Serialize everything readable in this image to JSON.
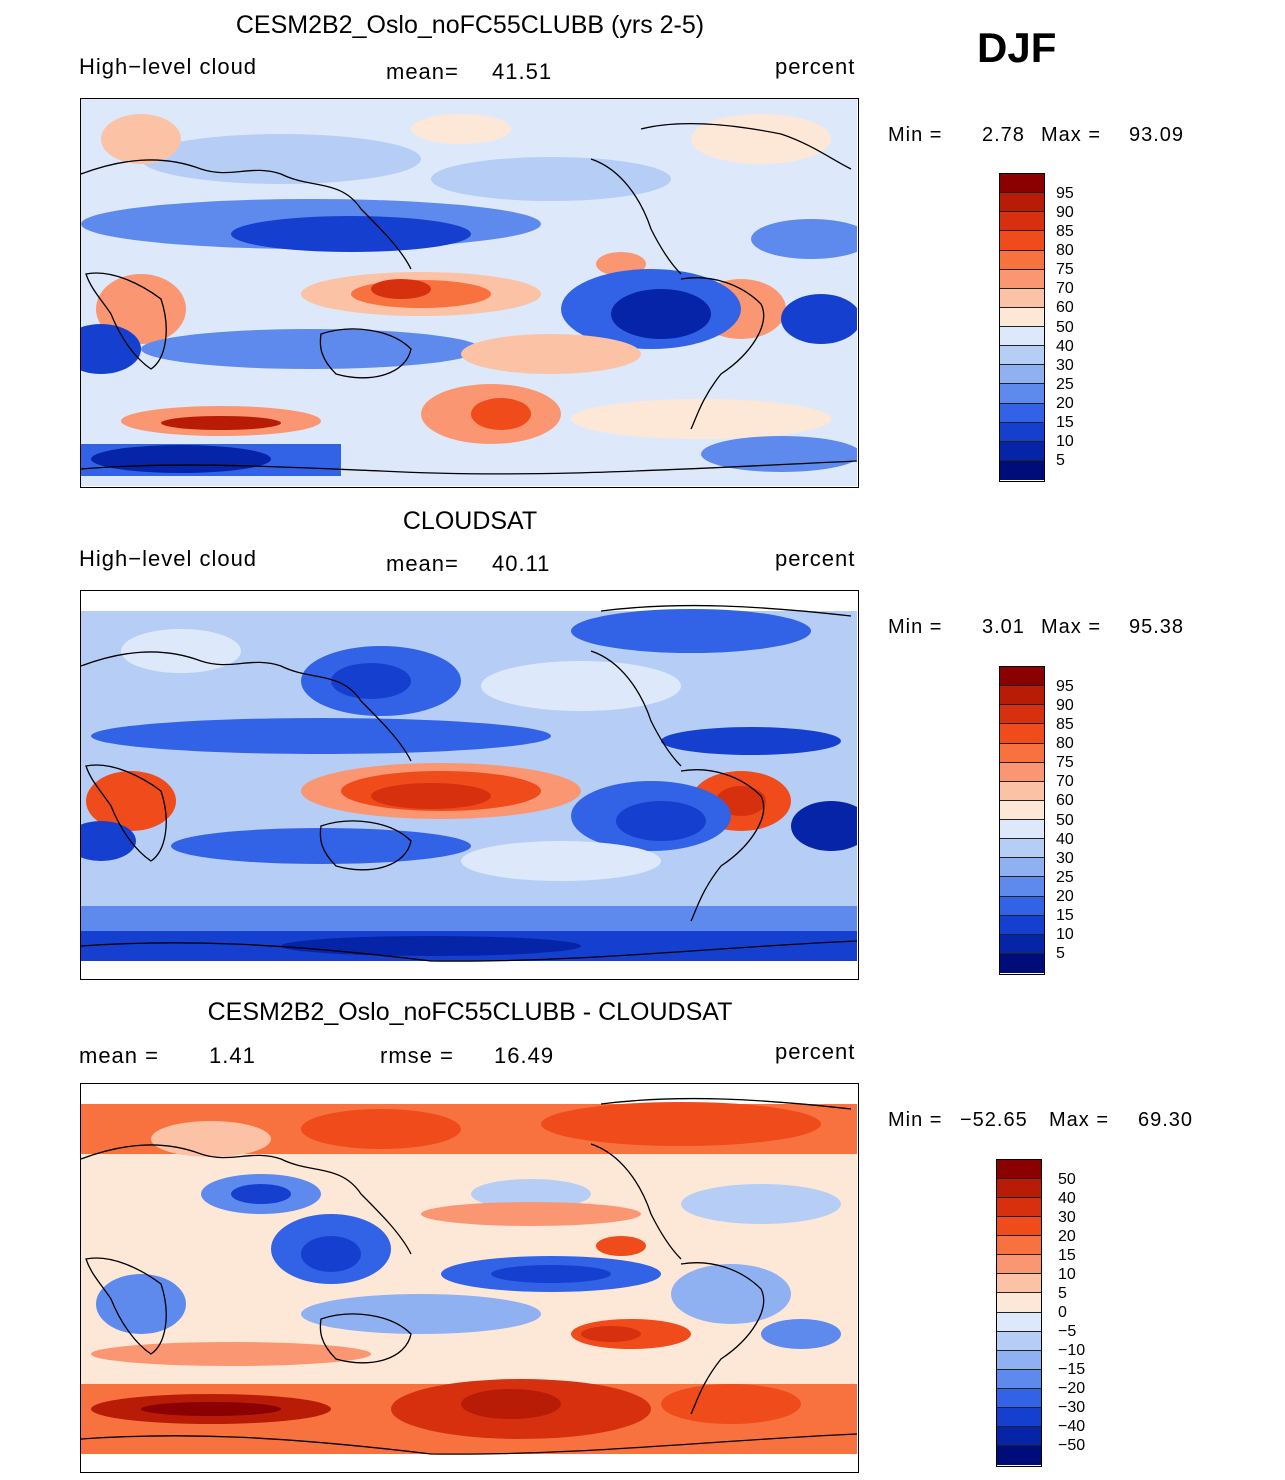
{
  "season": "DJF",
  "panels": [
    {
      "title": "CESM2B2_Oslo_noFC55CLUBB (yrs 2-5)",
      "left_label": "High−level cloud",
      "mid_label": "mean=",
      "mid_value": "41.51",
      "right_label": "percent",
      "min_label": "Min =",
      "min_value": "2.78",
      "max_label": "Max =",
      "max_value": "93.09",
      "levels": [
        "95",
        "90",
        "85",
        "80",
        "75",
        "70",
        "60",
        "50",
        "40",
        "30",
        "25",
        "20",
        "15",
        "10",
        "5"
      ],
      "colors": [
        "#8b0000",
        "#b81c07",
        "#d7300e",
        "#f04b1b",
        "#f7723f",
        "#fa9772",
        "#fcc2a5",
        "#fde8d8",
        "#dde9fa",
        "#b6cdf6",
        "#8fb0f1",
        "#5d8aec",
        "#3263e6",
        "#1540cf",
        "#0524a8",
        "#000c7a"
      ]
    },
    {
      "title": "CLOUDSAT",
      "left_label": "High−level cloud",
      "mid_label": "mean=",
      "mid_value": "40.11",
      "right_label": "percent",
      "min_label": "Min =",
      "min_value": "3.01",
      "max_label": "Max =",
      "max_value": "95.38",
      "levels": [
        "95",
        "90",
        "85",
        "80",
        "75",
        "70",
        "60",
        "50",
        "40",
        "30",
        "25",
        "20",
        "15",
        "10",
        "5"
      ],
      "colors": [
        "#8b0000",
        "#b81c07",
        "#d7300e",
        "#f04b1b",
        "#f7723f",
        "#fa9772",
        "#fcc2a5",
        "#fde8d8",
        "#dde9fa",
        "#b6cdf6",
        "#8fb0f1",
        "#5d8aec",
        "#3263e6",
        "#1540cf",
        "#0524a8",
        "#000c7a"
      ]
    },
    {
      "title": "CESM2B2_Oslo_noFC55CLUBB - CLOUDSAT",
      "left_label": "mean  =",
      "left_value": "1.41",
      "mid_label": "rmse  =",
      "mid_value": "16.49",
      "right_label": "percent",
      "min_label": "Min =",
      "min_value": "−52.65",
      "max_label": "Max =",
      "max_value": "69.30",
      "levels": [
        "50",
        "40",
        "30",
        "20",
        "15",
        "10",
        "5",
        "0",
        "−5",
        "−10",
        "−15",
        "−20",
        "−30",
        "−40",
        "−50"
      ],
      "colors": [
        "#8b0000",
        "#b81c07",
        "#d7300e",
        "#f04b1b",
        "#f7723f",
        "#fa9772",
        "#fcc2a5",
        "#fde8d8",
        "#dde9fa",
        "#b6cdf6",
        "#8fb0f1",
        "#5d8aec",
        "#3263e6",
        "#1540cf",
        "#0524a8",
        "#000c7a"
      ]
    }
  ],
  "chart_data": [
    {
      "type": "heatmap",
      "title": "CESM2B2_Oslo_noFC55CLUBB (yrs 2-5)",
      "variable": "High-level cloud",
      "units": "percent",
      "season": "DJF",
      "mean": 41.51,
      "min": 2.78,
      "max": 93.09,
      "contour_levels": [
        5,
        10,
        15,
        20,
        25,
        30,
        40,
        50,
        60,
        70,
        75,
        80,
        85,
        90,
        95
      ]
    },
    {
      "type": "heatmap",
      "title": "CLOUDSAT",
      "variable": "High-level cloud",
      "units": "percent",
      "season": "DJF",
      "mean": 40.11,
      "min": 3.01,
      "max": 95.38,
      "contour_levels": [
        5,
        10,
        15,
        20,
        25,
        30,
        40,
        50,
        60,
        70,
        75,
        80,
        85,
        90,
        95
      ]
    },
    {
      "type": "heatmap",
      "title": "CESM2B2_Oslo_noFC55CLUBB - CLOUDSAT",
      "units": "percent",
      "season": "DJF",
      "mean": 1.41,
      "rmse": 16.49,
      "min": -52.65,
      "max": 69.3,
      "contour_levels": [
        -50,
        -40,
        -30,
        -20,
        -15,
        -10,
        -5,
        0,
        5,
        10,
        15,
        20,
        30,
        40,
        50
      ]
    }
  ]
}
